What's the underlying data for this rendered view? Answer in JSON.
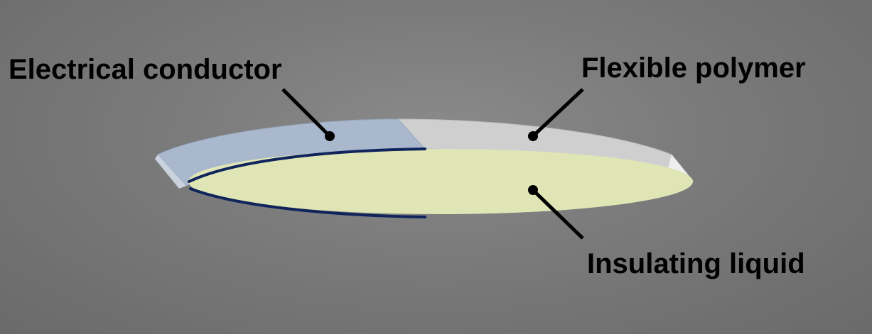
{
  "labels": {
    "conductor": "Electrical conductor",
    "polymer": "Flexible polymer",
    "liquid": "Insulating liquid"
  },
  "colors": {
    "conductor": "#a9b8cc",
    "polymer": "#cfcfcf",
    "liquid": "#dfe5b5",
    "edge": "#10245c",
    "leader": "#000000"
  }
}
